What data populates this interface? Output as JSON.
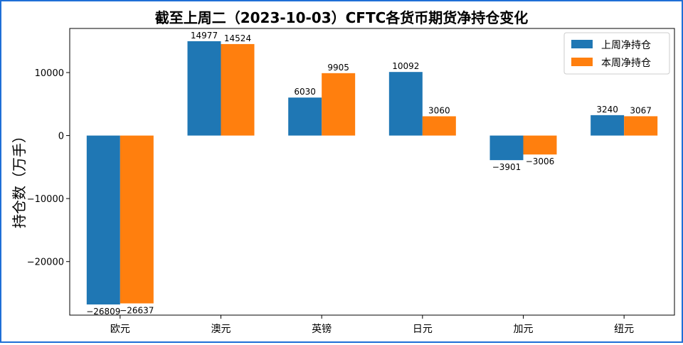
{
  "chart_data": {
    "type": "bar",
    "title": "截至上周二（2023-10-03）CFTC各货币期货净持仓变化",
    "xlabel": "",
    "ylabel": "持仓数（万手）",
    "categories": [
      "欧元",
      "澳元",
      "英镑",
      "日元",
      "加元",
      "纽元"
    ],
    "series": [
      {
        "name": "上周净持仓",
        "color": "#1f77b4",
        "values": [
          -26809,
          14977,
          6030,
          10092,
          -3901,
          3240
        ]
      },
      {
        "name": "本周净持仓",
        "color": "#ff7f0e",
        "values": [
          -26637,
          14524,
          9905,
          3060,
          -3006,
          3067
        ]
      }
    ],
    "ylim": [
      -28500,
      17000
    ],
    "yticks": [
      -20000,
      -10000,
      0,
      10000
    ],
    "ytick_labels": [
      "−20000",
      "−10000",
      "0",
      "10000"
    ],
    "legend_position": "top-right",
    "grid": false
  }
}
